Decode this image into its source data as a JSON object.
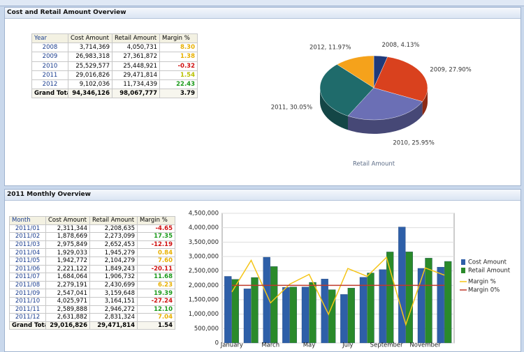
{
  "panels": [
    {
      "title": "Cost and Retail Amount Overview",
      "table": {
        "headers": [
          "Year",
          "Cost Amount",
          "Retail Amount",
          "Margin %"
        ],
        "rows": [
          [
            "2008",
            "3,714,369",
            "4,050,731",
            "8.30"
          ],
          [
            "2009",
            "26,983,318",
            "27,361,872",
            "1.38"
          ],
          [
            "2010",
            "25,529,577",
            "25,448,921",
            "-0.32"
          ],
          [
            "2011",
            "29,016,826",
            "29,471,814",
            "1.54"
          ],
          [
            "2012",
            "9,102,036",
            "11,734,439",
            "22.43"
          ]
        ],
        "total": [
          "Grand Total",
          "94,346,126",
          "98,067,777",
          "3.79"
        ],
        "margin_colors": [
          "#e8b000",
          "#e8b000",
          "#d01010",
          "#b8c000",
          "#1a9a1a"
        ]
      }
    },
    {
      "title": "2011 Monthly Overview",
      "table": {
        "headers": [
          "Month",
          "Cost Amount",
          "Retail Amount",
          "Margin %"
        ],
        "rows": [
          [
            "2011/01",
            "2,311,344",
            "2,208,635",
            "-4.65"
          ],
          [
            "2011/02",
            "1,878,669",
            "2,273,099",
            "17.35"
          ],
          [
            "2011/03",
            "2,975,849",
            "2,652,453",
            "-12.19"
          ],
          [
            "2011/04",
            "1,929,033",
            "1,945,279",
            "0.84"
          ],
          [
            "2011/05",
            "1,942,772",
            "2,104,279",
            "7.60"
          ],
          [
            "2011/06",
            "2,221,122",
            "1,849,243",
            "-20.11"
          ],
          [
            "2011/07",
            "1,684,064",
            "1,906,732",
            "11.68"
          ],
          [
            "2011/08",
            "2,279,191",
            "2,430,699",
            "6.23"
          ],
          [
            "2011/09",
            "2,547,041",
            "3,159,648",
            "19.39"
          ],
          [
            "2011/10",
            "4,025,971",
            "3,164,151",
            "-27.24"
          ],
          [
            "2011/11",
            "2,589,888",
            "2,946,272",
            "12.10"
          ],
          [
            "2011/12",
            "2,631,882",
            "2,831,324",
            "7.04"
          ]
        ],
        "total": [
          "Grand Total",
          "29,016,826",
          "29,471,814",
          "1.54"
        ],
        "margin_colors": [
          "#d01010",
          "#1a9a1a",
          "#d01010",
          "#e8b000",
          "#e8b000",
          "#d01010",
          "#1a9a1a",
          "#e8b000",
          "#1a9a1a",
          "#d01010",
          "#1a9a1a",
          "#e8b000"
        ]
      }
    }
  ],
  "chart_data": [
    {
      "type": "pie",
      "title": "Retail Amount",
      "categories": [
        "2008",
        "2009",
        "2010",
        "2011",
        "2012"
      ],
      "values": [
        4.13,
        27.9,
        25.95,
        30.05,
        11.97
      ],
      "value_labels": [
        "2008, 4.13%",
        "2009, 27.90%",
        "2010, 25.95%",
        "2011, 30.05%",
        "2012, 11.97%"
      ],
      "colors": [
        "#1f3a7a",
        "#d9411e",
        "#6b6fb5",
        "#1f6b6b",
        "#f5a21b"
      ]
    },
    {
      "type": "bar",
      "categories": [
        "January",
        null,
        "March",
        null,
        "May",
        null,
        "July",
        null,
        "September",
        null,
        "November",
        null
      ],
      "series": [
        {
          "name": "Cost Amount",
          "color": "#2e5fa8",
          "values": [
            2311344,
            1878669,
            2975849,
            1929033,
            1942772,
            2221122,
            1684064,
            2279191,
            2547041,
            4025971,
            2589888,
            2631882
          ]
        },
        {
          "name": "Retail Amount",
          "color": "#2a8a2a",
          "values": [
            2208635,
            2273099,
            2652453,
            1945279,
            2104279,
            1849243,
            1906732,
            2430699,
            3159648,
            3164151,
            2946272,
            2831324
          ]
        },
        {
          "name": "Margin %",
          "type": "line",
          "axis": "y2",
          "color": "#f5c518",
          "values": [
            -4.65,
            17.35,
            -12.19,
            0.84,
            7.6,
            -20.11,
            11.68,
            6.23,
            19.39,
            -27.24,
            12.1,
            7.04
          ]
        },
        {
          "name": "Margin 0%",
          "type": "line",
          "axis": "y2",
          "color": "#c0392b",
          "values": [
            0,
            0,
            0,
            0,
            0,
            0,
            0,
            0,
            0,
            0,
            0,
            0
          ]
        }
      ],
      "ylim": [
        0,
        4500000
      ],
      "yticks": [
        {
          "value": 0,
          "label": "0"
        },
        {
          "value": 500000,
          "label": "500,000"
        },
        {
          "value": 1000000,
          "label": "1,000,000"
        },
        {
          "value": 1500000,
          "label": "1,500,000"
        },
        {
          "value": 2000000,
          "label": "2,000,000"
        },
        {
          "value": 2500000,
          "label": "2,500,000"
        },
        {
          "value": 3000000,
          "label": "3,000,000"
        },
        {
          "value": 3500000,
          "label": "3,500,000"
        },
        {
          "value": 4000000,
          "label": "4,000,000"
        },
        {
          "value": 4500000,
          "label": "4,500,000"
        }
      ],
      "y2lim": [
        -40,
        50
      ],
      "grid": true,
      "legend": "right"
    }
  ]
}
